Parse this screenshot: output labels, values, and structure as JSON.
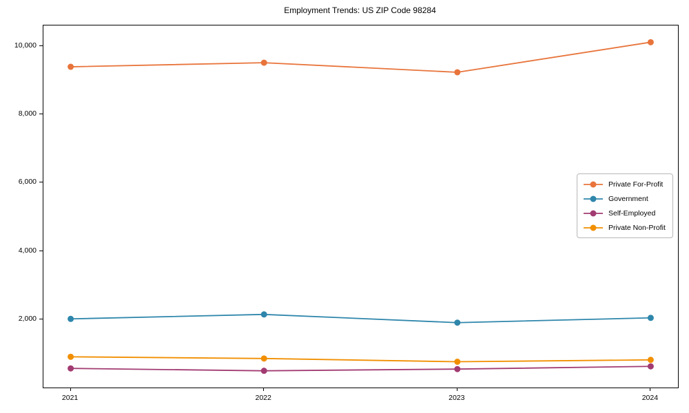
{
  "chart_data": {
    "type": "line",
    "title": "Employment Trends: US ZIP Code 98284",
    "x": [
      2021,
      2022,
      2023,
      2024
    ],
    "x_tick_labels": [
      "2021",
      "2022",
      "2023",
      "2024"
    ],
    "series": [
      {
        "name": "Private For-Profit",
        "color": "#E8743B",
        "values": [
          9390,
          9510,
          9230,
          10110
        ]
      },
      {
        "name": "Government",
        "color": "#2E86AB",
        "values": [
          2010,
          2140,
          1900,
          2040
        ]
      },
      {
        "name": "Self-Employed",
        "color": "#A23B72",
        "values": [
          560,
          490,
          540,
          620
        ]
      },
      {
        "name": "Private Non-Profit",
        "color": "#F18F01",
        "values": [
          900,
          850,
          755,
          810
        ]
      }
    ],
    "xlabel": "",
    "ylabel": "",
    "ylim": [
      0,
      10600
    ],
    "y_ticks": [
      2000,
      4000,
      6000,
      8000,
      10000
    ],
    "y_tick_labels": [
      "2,000",
      "4,000",
      "6,000",
      "8,000",
      "10,000"
    ],
    "grid": false,
    "legend_position": "center right",
    "marker": "circle",
    "line_width": 1.8,
    "marker_radius": 4.5,
    "axis_color": "#000000",
    "background_color": "#ffffff"
  }
}
